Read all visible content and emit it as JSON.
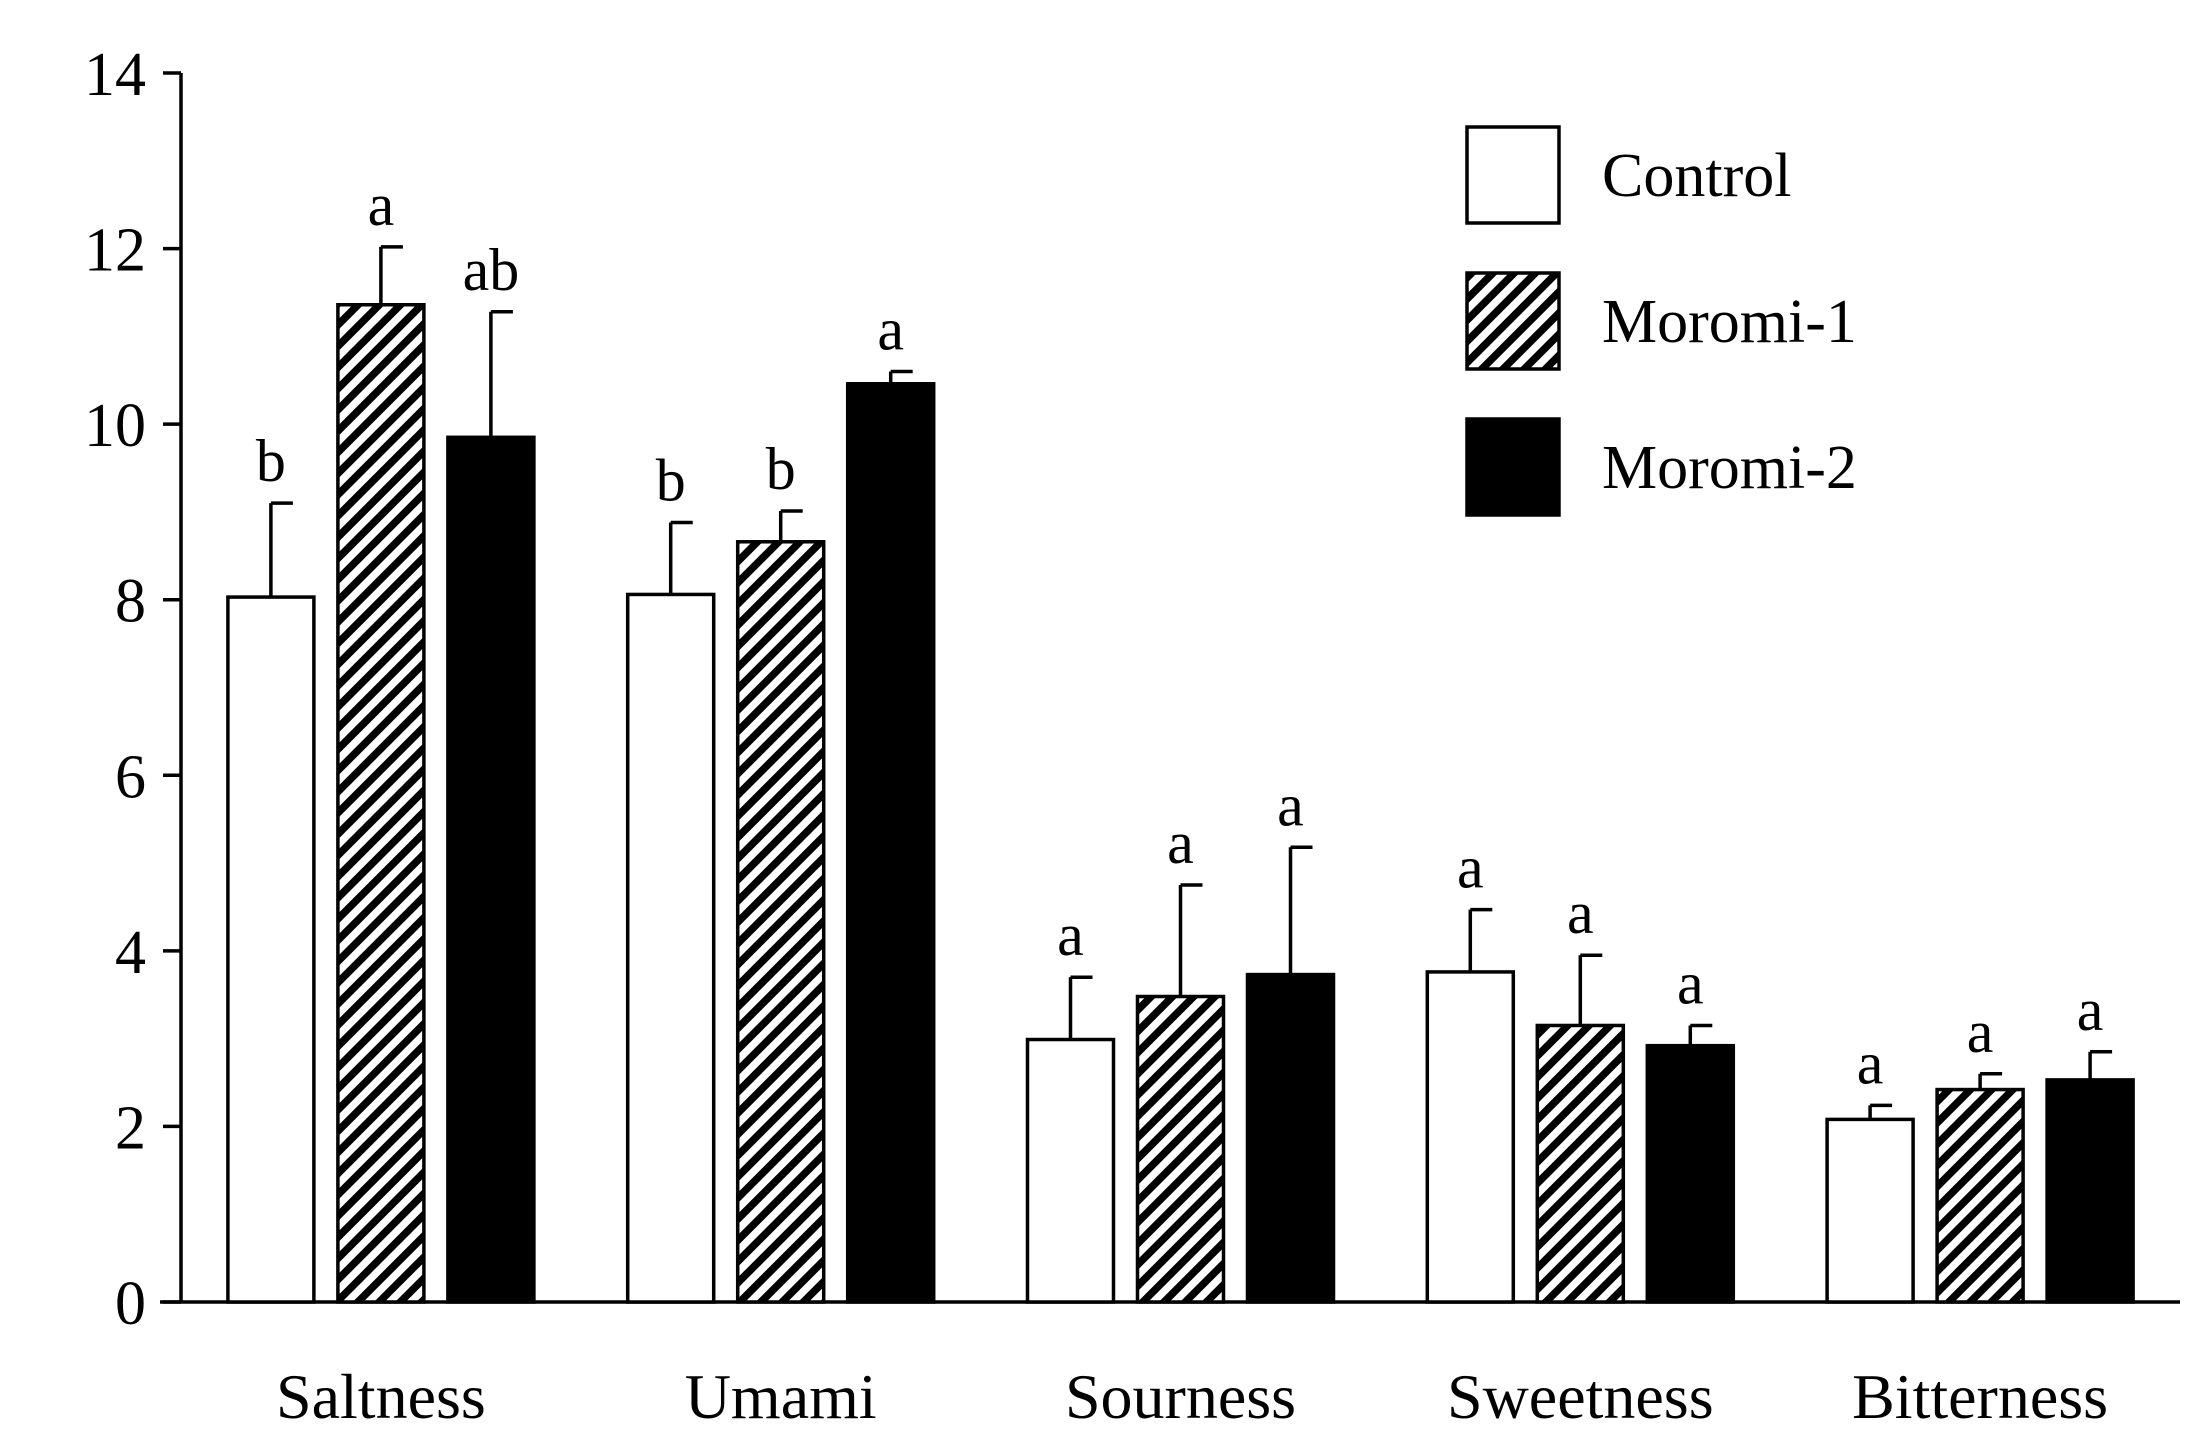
{
  "chart_data": {
    "type": "bar",
    "title": "",
    "xlabel": "",
    "ylabel": "",
    "ylim": [
      0,
      14
    ],
    "yticks": [
      0,
      2,
      4,
      6,
      8,
      10,
      12,
      14
    ],
    "grid": false,
    "legend_position": "top-right",
    "categories": [
      "Saltness",
      "Umami",
      "Sourness",
      "Sweetness",
      "Bitterness"
    ],
    "series": [
      {
        "name": "Control",
        "fill": "white",
        "values": [
          8.03,
          8.06,
          2.99,
          3.76,
          2.08
        ],
        "errors": [
          1.07,
          0.82,
          0.71,
          0.71,
          0.16
        ],
        "significance": [
          "b",
          "b",
          "a",
          "a",
          "a"
        ]
      },
      {
        "name": "Moromi-1",
        "fill": "hatched",
        "values": [
          11.36,
          8.66,
          3.48,
          3.15,
          2.42
        ],
        "errors": [
          0.66,
          0.35,
          1.27,
          0.8,
          0.18
        ],
        "significance": [
          "a",
          "b",
          "a",
          "a",
          "a"
        ]
      },
      {
        "name": "Moromi-2",
        "fill": "black",
        "values": [
          9.85,
          10.46,
          3.73,
          2.92,
          2.53
        ],
        "errors": [
          1.43,
          0.14,
          1.45,
          0.23,
          0.32
        ],
        "significance": [
          "ab",
          "a",
          "a",
          "a",
          "a"
        ]
      }
    ]
  },
  "colors": {
    "axis": "#000000",
    "control": "#ffffff",
    "moromi2": "#000000"
  }
}
